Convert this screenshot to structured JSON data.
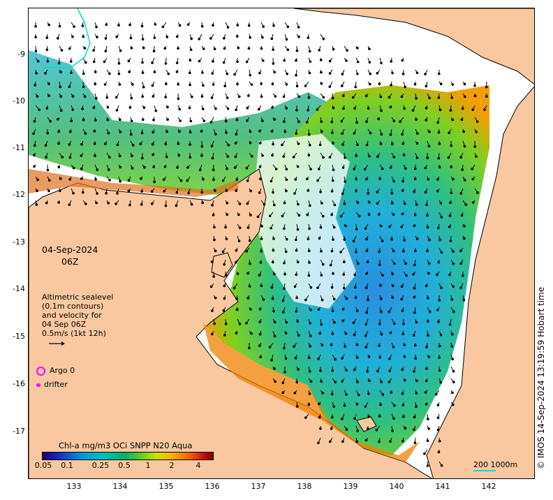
{
  "axes": {
    "lat_ticks": [
      "-9",
      "-10",
      "-11",
      "-12",
      "-13",
      "-14",
      "-15",
      "-16",
      "-17"
    ],
    "lon_ticks": [
      "133",
      "134",
      "135",
      "136",
      "137",
      "138",
      "139",
      "140",
      "141",
      "142"
    ]
  },
  "overlay": {
    "date": "04-Sep-2024",
    "time": "06Z",
    "velocity_note": [
      "Altimetric sealevel",
      "(0.1m contours)",
      "and velocity for",
      "04 Sep 06Z",
      "0.5m/s (1kt 12h)"
    ],
    "argo_label": "Argo 0",
    "drifter_label": "drifter"
  },
  "colorbar": {
    "title": "Chl-a mg/m3 OCi SNPP N20 Aqua",
    "ticks": [
      "0.05",
      "0.1",
      "0.25",
      "0.5",
      "1",
      "2",
      "4"
    ]
  },
  "scale": {
    "label": "200  1000m"
  },
  "credit": "© IMOS 14-Sep-2024 13:19:59 Hobart time",
  "colors": {
    "land": "#f9c8a0",
    "argo": "#ff00ff",
    "shelf_line": "#00d8d8"
  }
}
